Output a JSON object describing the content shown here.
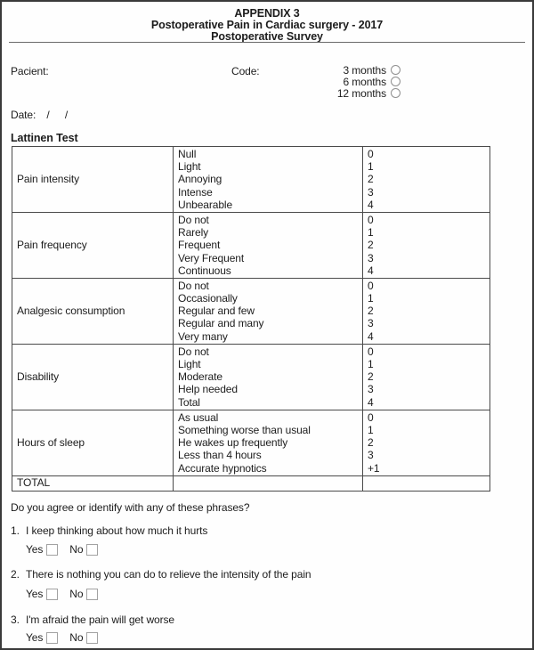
{
  "header": {
    "line1": "APPENDIX 3",
    "line2": "Postoperative Pain in Cardiac surgery - 2017",
    "line3": "Postoperative Survey"
  },
  "patient_section": {
    "patient_label": "Pacient:",
    "code_label": "Code:",
    "code_options": [
      "3 months",
      "6 months",
      "12 months"
    ],
    "date_label": "Date:",
    "date_slashes": [
      "/",
      "/"
    ]
  },
  "lattinen": {
    "title": "Lattinen Test",
    "rows": [
      {
        "category": "Pain intensity",
        "options": [
          "Null",
          "Light",
          "Annoying",
          "Intense",
          "Unbearable"
        ],
        "scores": [
          "0",
          "1",
          "2",
          "3",
          "4"
        ]
      },
      {
        "category": "Pain frequency",
        "options": [
          "Do not",
          "Rarely",
          "Frequent",
          "Very Frequent",
          "Continuous"
        ],
        "scores": [
          "0",
          "1",
          "2",
          "3",
          "4"
        ]
      },
      {
        "category": "Analgesic consumption",
        "options": [
          "Do not",
          "Occasionally",
          "Regular and few",
          "Regular and many",
          "Very many"
        ],
        "scores": [
          "0",
          "1",
          "2",
          "3",
          "4"
        ]
      },
      {
        "category": "Disability",
        "options": [
          "Do not",
          "Light",
          "Moderate",
          "Help needed",
          "Total"
        ],
        "scores": [
          "0",
          "1",
          "2",
          "3",
          "4"
        ]
      },
      {
        "category": "Hours of sleep",
        "options": [
          "As usual",
          "Something worse than usual",
          "He wakes up frequently",
          "Less than 4 hours",
          "Accurate hypnotics"
        ],
        "scores": [
          "0",
          "1",
          "2",
          "3",
          "+1"
        ]
      }
    ],
    "total_label": "TOTAL"
  },
  "questions": {
    "intro": "Do you agree or identify with any of these phrases?",
    "yes_label": "Yes",
    "no_label": "No",
    "items": [
      {
        "number": "1.",
        "text": "I keep thinking about how much it hurts"
      },
      {
        "number": "2.",
        "text": "There is nothing you can do to relieve the intensity of the pain"
      },
      {
        "number": "3.",
        "text": "I'm afraid the pain will get worse"
      }
    ]
  }
}
